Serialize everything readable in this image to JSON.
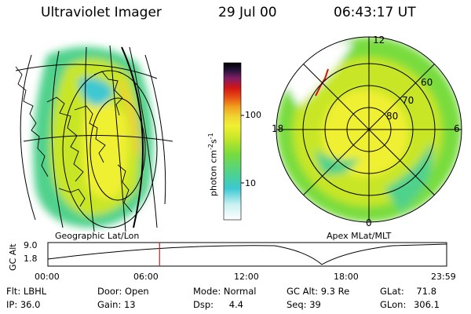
{
  "header": {
    "instrument": "Ultraviolet Imager",
    "date": "29 Jul 00",
    "time": "06:43:17 UT"
  },
  "geo_panel": {
    "label": "Geographic Lat/Lon"
  },
  "apex_panel": {
    "label": "Apex MLat/MLT",
    "mlt_labels": {
      "top": "12",
      "left": "18",
      "right": "6",
      "bottom": "0"
    },
    "lat_labels": [
      "60",
      "70",
      "80"
    ]
  },
  "colorbar": {
    "unit_label": "photon cm",
    "unit_exp1": "-2",
    "unit_mid": "s",
    "unit_exp2": "-1",
    "ticks": [
      "100",
      "10"
    ],
    "colors": [
      "#ffffff",
      "#c8f0f0",
      "#3cc8d2",
      "#50d28c",
      "#78dc3c",
      "#c8e628",
      "#f0f032",
      "#f0d232",
      "#f0a01e",
      "#e65014",
      "#d21414",
      "#821e64",
      "#28143c",
      "#000000"
    ]
  },
  "altitude_plot": {
    "y_label": "GC Alt",
    "y_ticks": [
      "9.0",
      "1.8"
    ],
    "x_ticks": [
      "00:00",
      "06:00",
      "12:00",
      "18:00",
      "23:59"
    ],
    "current_time_hours": 6.72
  },
  "info": {
    "flt_label": "Flt:",
    "flt": "LBHL",
    "ip_label": "IP:",
    "ip": "36.0",
    "door_label": "Door:",
    "door": "Open",
    "gain_label": "Gain:",
    "gain": "13",
    "mode_label": "Mode:",
    "mode": "Normal",
    "dsp_label": "Dsp:",
    "dsp": "4.4",
    "gcalt_label": "GC Alt:",
    "gcalt": "9.3 Re",
    "seq_label": "Seq:",
    "seq": "39",
    "glat_label": "GLat:",
    "glat": "71.8",
    "glon_label": "GLon:",
    "glon": "306.1"
  }
}
